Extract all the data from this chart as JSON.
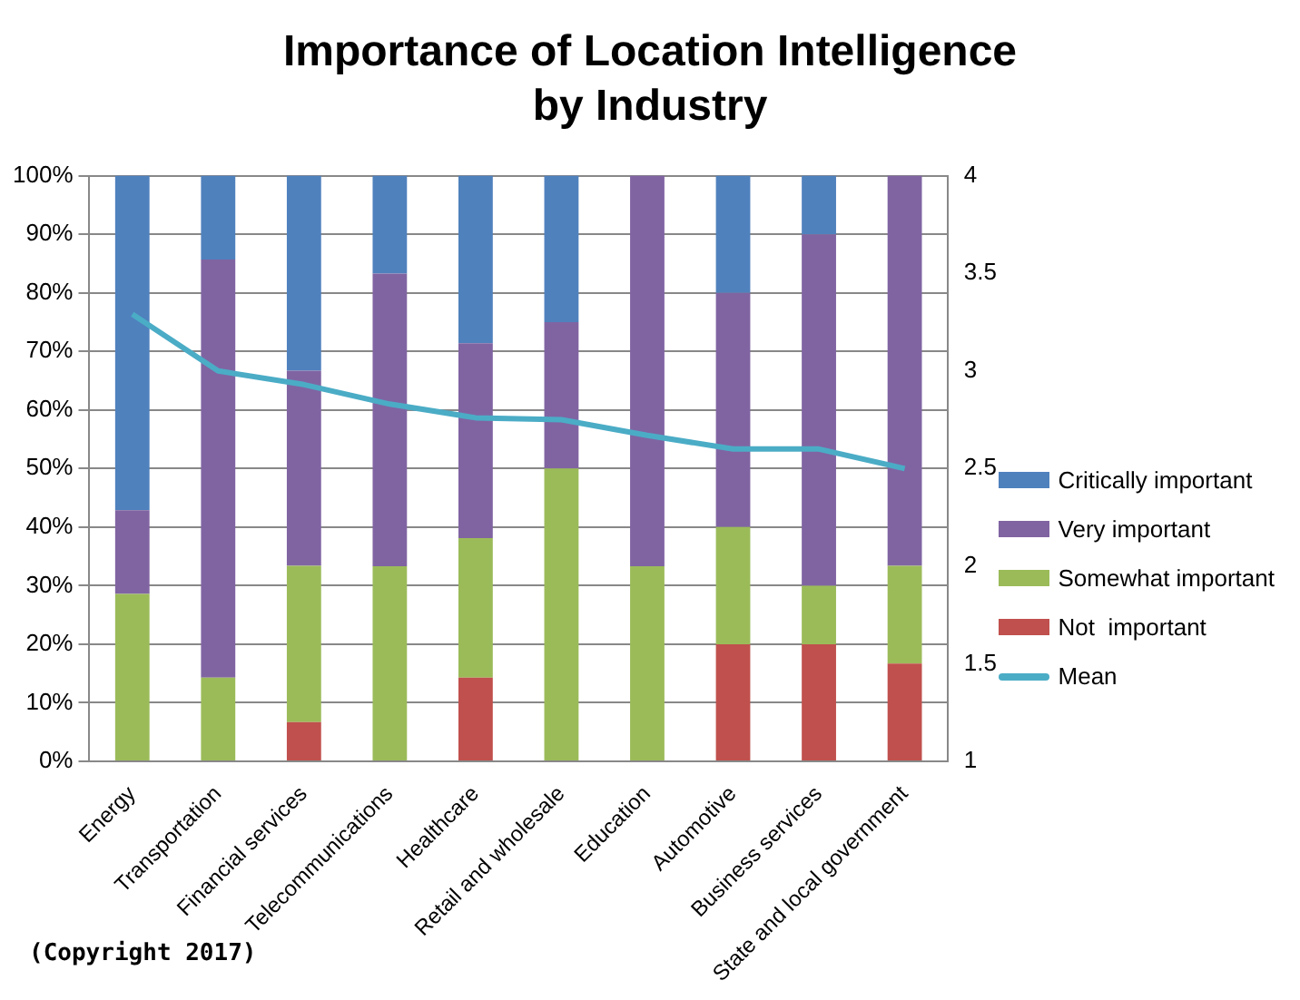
{
  "chart_data": {
    "type": "bar",
    "title": "Importance of Location Intelligence by Industry",
    "categories": [
      "Energy",
      "Transportation",
      "Financial services",
      "Telecommunications",
      "Healthcare",
      "Retail and wholesale",
      "Education",
      "Automotive",
      "Business services",
      "State and local government"
    ],
    "stacked": true,
    "series": [
      {
        "name": "Not  important",
        "color": "#c0504d",
        "values": [
          0,
          0,
          6.7,
          0,
          14.3,
          0,
          0,
          20,
          20,
          16.7
        ]
      },
      {
        "name": "Somewhat important",
        "color": "#9bbb59",
        "values": [
          28.6,
          14.3,
          26.7,
          33.3,
          23.8,
          50,
          33.3,
          20,
          10,
          16.7
        ]
      },
      {
        "name": "Very important",
        "color": "#8064a2",
        "values": [
          14.3,
          71.4,
          33.3,
          50,
          33.3,
          25,
          66.7,
          40,
          60,
          66.6
        ]
      },
      {
        "name": "Critically important",
        "color": "#4f81bd",
        "values": [
          57.1,
          14.3,
          33.3,
          16.7,
          28.6,
          25,
          0,
          20,
          10,
          0
        ]
      },
      {
        "name": "Mean",
        "type": "line",
        "axis": "y2",
        "color": "#4bacc6",
        "values": [
          3.29,
          3.0,
          2.93,
          2.83,
          2.76,
          2.75,
          2.67,
          2.6,
          2.6,
          2.5
        ]
      }
    ],
    "ylim": [
      0,
      100
    ],
    "yticks": [
      {
        "value": 0,
        "label": "0%"
      },
      {
        "value": 10,
        "label": "10%"
      },
      {
        "value": 20,
        "label": "20%"
      },
      {
        "value": 30,
        "label": "30%"
      },
      {
        "value": 40,
        "label": "40%"
      },
      {
        "value": 50,
        "label": "50%"
      },
      {
        "value": 60,
        "label": "60%"
      },
      {
        "value": 70,
        "label": "70%"
      },
      {
        "value": 80,
        "label": "80%"
      },
      {
        "value": 90,
        "label": "90%"
      },
      {
        "value": 100,
        "label": "100%"
      }
    ],
    "y2lim": [
      1,
      4
    ],
    "y2ticks": [
      1,
      1.5,
      2,
      2.5,
      3,
      3.5,
      4
    ],
    "grid": "y",
    "legend": "right",
    "marker": "none",
    "annotations": [
      "(Copyright 2017)"
    ]
  }
}
